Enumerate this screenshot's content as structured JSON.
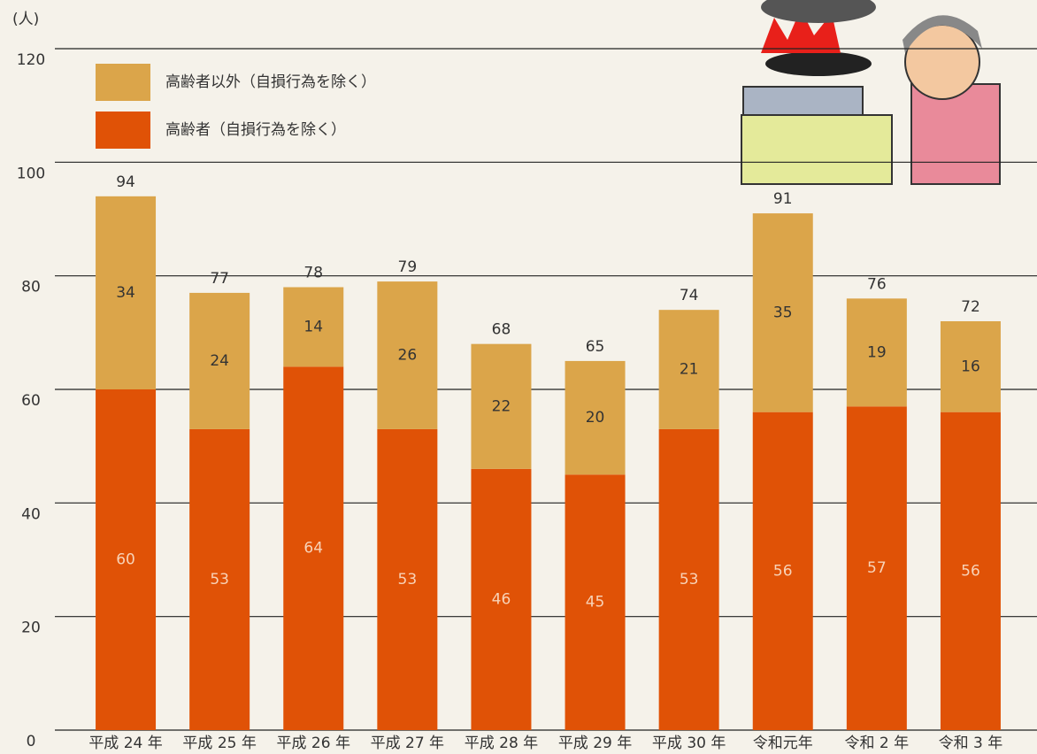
{
  "chart_data": {
    "type": "stacked-bar",
    "y_label": "(人)",
    "categories": [
      "平成 24 年",
      "平成 25 年",
      "平成 26 年",
      "平成 27 年",
      "平成 28 年",
      "平成 29 年",
      "平成 30 年",
      "令和元年",
      "令和 2 年",
      "令和 3 年"
    ],
    "series": [
      {
        "name": "高齢者（自損行為を除く）",
        "color": "#e05206",
        "values": [
          60,
          53,
          64,
          53,
          46,
          45,
          53,
          56,
          57,
          56
        ]
      },
      {
        "name": "高齢者以外（自損行為を除く）",
        "color": "#dba54a",
        "values": [
          34,
          24,
          14,
          26,
          22,
          20,
          21,
          35,
          19,
          16
        ]
      }
    ],
    "totals": [
      94,
      77,
      78,
      79,
      68,
      65,
      74,
      91,
      76,
      72
    ],
    "ylim": [
      0,
      120
    ],
    "yticks": [
      0,
      20,
      40,
      60,
      80,
      100,
      120
    ],
    "grid": true
  }
}
